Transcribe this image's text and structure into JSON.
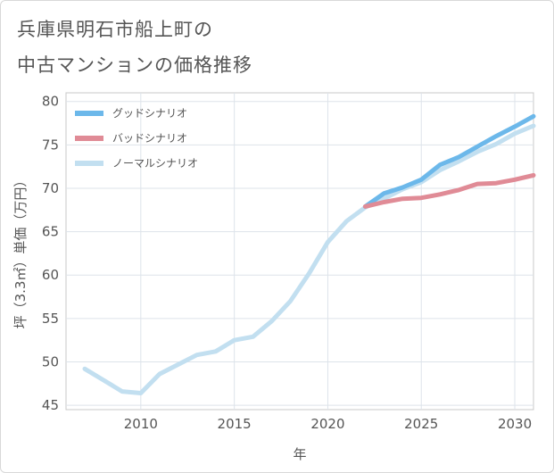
{
  "title_lines": [
    "兵庫県明石市船上町の",
    "中古マンションの価格推移"
  ],
  "chart_data": {
    "type": "line",
    "xlabel": "年",
    "ylabel": "坪（3.3㎡）単価（万円）",
    "xlim": [
      2006,
      2031
    ],
    "ylim": [
      44.5,
      81
    ],
    "x_ticks": [
      2010,
      2015,
      2020,
      2025,
      2030
    ],
    "y_ticks": [
      45,
      50,
      55,
      60,
      65,
      70,
      75,
      80
    ],
    "grid": true,
    "legend_position": "top-left",
    "series": [
      {
        "name": "グッドシナリオ",
        "color": "#6cb8ea",
        "x": [
          2022,
          2023,
          2024,
          2025,
          2026,
          2027,
          2028,
          2029,
          2030,
          2031
        ],
        "y": [
          67.9,
          69.4,
          70.1,
          71.0,
          72.7,
          73.6,
          74.8,
          76.0,
          77.1,
          78.3
        ]
      },
      {
        "name": "バッドシナリオ",
        "color": "#e08b96",
        "x": [
          2022,
          2023,
          2024,
          2025,
          2026,
          2027,
          2028,
          2029,
          2030,
          2031
        ],
        "y": [
          67.9,
          68.4,
          68.8,
          68.9,
          69.3,
          69.8,
          70.5,
          70.6,
          71.0,
          71.5
        ]
      },
      {
        "name": "ノーマルシナリオ",
        "color": "#c2dff0",
        "x": [
          2007,
          2008,
          2009,
          2010,
          2011,
          2012,
          2013,
          2014,
          2015,
          2016,
          2017,
          2018,
          2019,
          2020,
          2021,
          2022,
          2023,
          2024,
          2025,
          2026,
          2027,
          2028,
          2029,
          2030,
          2031
        ],
        "y": [
          49.2,
          47.9,
          46.6,
          46.4,
          48.6,
          49.7,
          50.8,
          51.2,
          52.5,
          52.9,
          54.7,
          57.0,
          60.2,
          63.8,
          66.2,
          67.8,
          68.8,
          69.9,
          70.7,
          72.1,
          73.1,
          74.2,
          75.1,
          76.3,
          77.2
        ]
      }
    ]
  }
}
